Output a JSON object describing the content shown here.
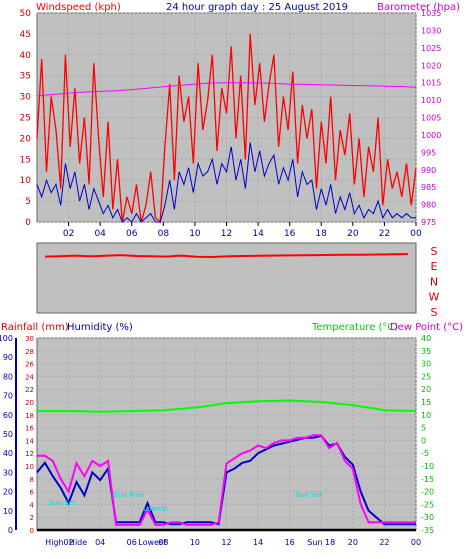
{
  "header": {
    "left_label": "Windspeed (kph)",
    "title": "24 hour graph day : 25 August 2019",
    "right_label": "Barometer (hpa)"
  },
  "colors": {
    "plot_bg": "#c0c0c0",
    "gust": "#ff0000",
    "avg_wind": "#0000cc",
    "barometer": "#ff00ff",
    "temperature": "#00ff00",
    "dew_point": "#ff00ff",
    "humidity": "#0000cc",
    "rain": "#ff0000",
    "sun": "#00e0e0"
  },
  "chart_data": [
    {
      "type": "line",
      "xlabel": "",
      "x_ticks": [
        "02",
        "04",
        "06",
        "08",
        "10",
        "12",
        "14",
        "16",
        "18",
        "20",
        "22",
        "00"
      ],
      "left_axis": {
        "label": "Windspeed (kph)",
        "ylim": [
          0,
          50
        ],
        "ticks": [
          0,
          5,
          10,
          15,
          20,
          25,
          30,
          35,
          40,
          45,
          50
        ]
      },
      "right_axis": {
        "label": "Barometer (hpa)",
        "ylim": [
          975,
          1035
        ],
        "ticks": [
          975,
          980,
          985,
          990,
          995,
          1000,
          1005,
          1010,
          1015,
          1020,
          1025,
          1030,
          1035
        ]
      },
      "series": [
        {
          "key": "gust",
          "axis": "left",
          "x": [
            0,
            0.3,
            0.6,
            0.9,
            1.2,
            1.5,
            1.8,
            2.1,
            2.4,
            2.7,
            3,
            3.3,
            3.6,
            3.9,
            4.2,
            4.5,
            4.8,
            5.1,
            5.4,
            5.7,
            6,
            6.3,
            6.6,
            6.9,
            7.2,
            7.5,
            7.8,
            8.1,
            8.4,
            8.7,
            9,
            9.3,
            9.6,
            9.9,
            10.2,
            10.5,
            10.8,
            11.1,
            11.4,
            11.7,
            12,
            12.3,
            12.6,
            12.9,
            13.2,
            13.5,
            13.8,
            14.1,
            14.4,
            14.7,
            15,
            15.3,
            15.6,
            15.9,
            16.2,
            16.5,
            16.8,
            17.1,
            17.4,
            17.7,
            18,
            18.3,
            18.6,
            18.9,
            19.2,
            19.5,
            19.8,
            20.1,
            20.4,
            20.7,
            21,
            21.3,
            21.6,
            21.9,
            22.2,
            22.5,
            22.8,
            23.1,
            23.4,
            23.7,
            24
          ],
          "values": [
            20,
            39,
            12,
            30,
            22,
            8,
            40,
            18,
            32,
            14,
            25,
            9,
            38,
            20,
            6,
            24,
            3,
            15,
            0,
            6,
            2,
            9,
            0,
            4,
            12,
            1,
            0,
            18,
            33,
            10,
            35,
            24,
            30,
            14,
            38,
            22,
            29,
            40,
            17,
            32,
            26,
            42,
            20,
            35,
            15,
            45,
            28,
            38,
            24,
            33,
            40,
            18,
            30,
            22,
            36,
            14,
            28,
            20,
            27,
            8,
            24,
            14,
            30,
            10,
            22,
            16,
            26,
            9,
            20,
            6,
            18,
            12,
            25,
            4,
            15,
            8,
            12,
            6,
            14,
            4,
            13
          ]
        },
        {
          "key": "avg_wind",
          "axis": "left",
          "x": [
            0,
            0.3,
            0.6,
            0.9,
            1.2,
            1.5,
            1.8,
            2.1,
            2.4,
            2.7,
            3,
            3.3,
            3.6,
            3.9,
            4.2,
            4.5,
            4.8,
            5.1,
            5.4,
            5.7,
            6,
            6.3,
            6.6,
            6.9,
            7.2,
            7.5,
            7.8,
            8.1,
            8.4,
            8.7,
            9,
            9.3,
            9.6,
            9.9,
            10.2,
            10.5,
            10.8,
            11.1,
            11.4,
            11.7,
            12,
            12.3,
            12.6,
            12.9,
            13.2,
            13.5,
            13.8,
            14.1,
            14.4,
            14.7,
            15,
            15.3,
            15.6,
            15.9,
            16.2,
            16.5,
            16.8,
            17.1,
            17.4,
            17.7,
            18,
            18.3,
            18.6,
            18.9,
            19.2,
            19.5,
            19.8,
            20.1,
            20.4,
            20.7,
            21,
            21.3,
            21.6,
            21.9,
            22.2,
            22.5,
            22.8,
            23.1,
            23.4,
            23.7,
            24
          ],
          "values": [
            9,
            6,
            10,
            7,
            9,
            4,
            14,
            8,
            12,
            5,
            9,
            3,
            8,
            5,
            2,
            4,
            1,
            3,
            0,
            1,
            0,
            2,
            0,
            1,
            2,
            0,
            0,
            4,
            10,
            3,
            12,
            9,
            13,
            7,
            14,
            11,
            12,
            15,
            9,
            14,
            12,
            18,
            10,
            15,
            8,
            19,
            12,
            17,
            11,
            14,
            16,
            9,
            13,
            10,
            15,
            6,
            12,
            9,
            10,
            3,
            8,
            4,
            9,
            2,
            6,
            3,
            7,
            2,
            4,
            1,
            3,
            2,
            5,
            1,
            3,
            1,
            2,
            1,
            2,
            1,
            1
          ]
        },
        {
          "key": "barometer",
          "axis": "right",
          "x": [
            0,
            1,
            2,
            3,
            4,
            5,
            6,
            7,
            8,
            9,
            10,
            11,
            12,
            13,
            14,
            15,
            16,
            17,
            18,
            19,
            20,
            21,
            22,
            23,
            24
          ],
          "values": [
            1011.2,
            1011.6,
            1012.0,
            1012.3,
            1012.5,
            1012.7,
            1013.0,
            1013.4,
            1013.8,
            1014.2,
            1014.6,
            1014.9,
            1015.0,
            1015.0,
            1014.9,
            1014.8,
            1014.6,
            1014.5,
            1014.4,
            1014.3,
            1014.2,
            1014.1,
            1014.0,
            1013.9,
            1013.7
          ]
        }
      ]
    },
    {
      "type": "scatter",
      "ylabels": [
        "S",
        "E",
        "N",
        "W",
        "S"
      ],
      "series": [
        {
          "key": "wind_direction",
          "x": [
            0,
            1,
            2,
            3,
            4,
            5,
            6,
            7,
            8,
            9,
            10,
            11,
            12,
            13,
            14,
            15,
            16,
            17,
            18,
            19,
            20,
            21,
            22,
            23,
            24
          ],
          "values": [
            290,
            292,
            295,
            291,
            294,
            298,
            293,
            292,
            290,
            295,
            289,
            288,
            291,
            293,
            294,
            295,
            296,
            297,
            298,
            299,
            300,
            300,
            301,
            302,
            303
          ]
        }
      ]
    },
    {
      "type": "line",
      "x_ticks": [
        "High",
        "02",
        "Hide",
        "04",
        "06",
        "Lowest",
        "08",
        "10",
        "12",
        "14",
        "16",
        "Sun 18",
        "20",
        "22",
        "00"
      ],
      "left_axis": {
        "label": "Humidity (%)",
        "ylim": [
          0,
          100
        ],
        "ticks": [
          0,
          10,
          20,
          30,
          40,
          50,
          60,
          70,
          80,
          90,
          100
        ]
      },
      "rain_axis": {
        "label": "Rainfall (mm)",
        "ylim": [
          0,
          30
        ],
        "ticks": [
          0,
          2,
          4,
          6,
          8,
          10,
          12,
          14,
          16,
          18,
          20,
          22,
          24,
          26,
          28,
          30
        ]
      },
      "right_axis": {
        "label": "Temperature (°C)",
        "ylim": [
          -35,
          40
        ],
        "ticks": [
          -35,
          -30,
          -25,
          -20,
          -15,
          -10,
          -5,
          0,
          5,
          10,
          15,
          20,
          25,
          30,
          35,
          40
        ]
      },
      "right_label2": "Dew Point (°C)",
      "annotations": [
        "Sun Set",
        "Sun Rise",
        "Lowest",
        "Sun Set"
      ],
      "series": [
        {
          "key": "humidity",
          "axis": "left",
          "x": [
            0,
            0.5,
            1,
            1.5,
            2,
            2.5,
            3,
            3.5,
            4,
            4.5,
            5,
            5.5,
            6,
            6.5,
            7,
            7.5,
            8,
            8.5,
            9,
            9.5,
            10,
            10.5,
            11,
            11.5,
            12,
            12.5,
            13,
            13.5,
            14,
            14.5,
            15,
            15.5,
            16,
            16.5,
            17,
            17.5,
            18,
            18.5,
            19,
            19.5,
            20,
            20.5,
            21,
            22,
            23,
            24
          ],
          "values": [
            30,
            35,
            28,
            22,
            14,
            25,
            18,
            30,
            26,
            32,
            4,
            4,
            4,
            4,
            14,
            4,
            4,
            3,
            3,
            4,
            4,
            4,
            4,
            3,
            30,
            32,
            35,
            36,
            40,
            42,
            44,
            45,
            46,
            47,
            48,
            48,
            49,
            44,
            45,
            38,
            34,
            20,
            10,
            3,
            3,
            3
          ]
        },
        {
          "key": "dew_point",
          "axis": "right",
          "x": [
            0,
            0.5,
            1,
            1.5,
            2,
            2.5,
            3,
            3.5,
            4,
            4.5,
            5,
            5.5,
            6,
            6.5,
            7,
            7.5,
            8,
            8.5,
            9,
            9.5,
            10,
            10.5,
            11,
            11.5,
            12,
            12.5,
            13,
            13.5,
            14,
            14.5,
            15,
            15.5,
            16,
            16.5,
            17,
            17.5,
            18,
            18.5,
            19,
            19.5,
            20,
            20.5,
            21,
            22,
            23,
            24
          ],
          "values": [
            -6,
            -6,
            -8,
            -15,
            -20,
            -9,
            -14,
            -8,
            -10,
            -8,
            -33,
            -33,
            -33,
            -33,
            -27,
            -33,
            -33,
            -32,
            -32,
            -33,
            -33,
            -33,
            -33,
            -32,
            -9,
            -7,
            -5,
            -4,
            -2,
            -3,
            -1,
            0,
            0,
            1,
            1,
            2,
            2,
            -3,
            -1,
            -8,
            -11,
            -25,
            -32,
            -32,
            -32,
            -32
          ]
        },
        {
          "key": "temperature",
          "axis": "right",
          "x": [
            0,
            2,
            4,
            6,
            8,
            10,
            12,
            14,
            16,
            18,
            20,
            22,
            24
          ],
          "values": [
            11.5,
            11.5,
            11.2,
            11.5,
            11.8,
            12.8,
            14.5,
            15.3,
            15.6,
            15.0,
            13.8,
            11.8,
            11.5
          ]
        },
        {
          "key": "rainfall",
          "axis": "rain",
          "x": [
            0,
            24
          ],
          "values": [
            0,
            0
          ]
        }
      ]
    }
  ]
}
